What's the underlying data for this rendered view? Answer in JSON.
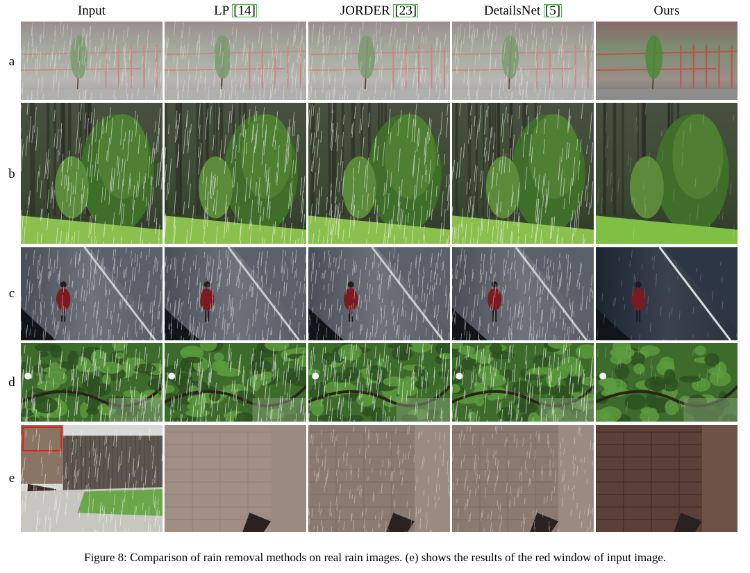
{
  "figure": {
    "columns": [
      {
        "label": "Input",
        "ref": ""
      },
      {
        "label": "LP ",
        "ref": "[14]"
      },
      {
        "label": "JORDER ",
        "ref": "[23]"
      },
      {
        "label": "DetailsNet ",
        "ref": "[5]"
      },
      {
        "label": "Ours",
        "ref": ""
      }
    ],
    "rows": [
      "a",
      "b",
      "c",
      "d",
      "e"
    ],
    "caption": "Figure 8: Comparison of rain removal methods on real rain images. (e) shows the results of the red window of input image."
  }
}
